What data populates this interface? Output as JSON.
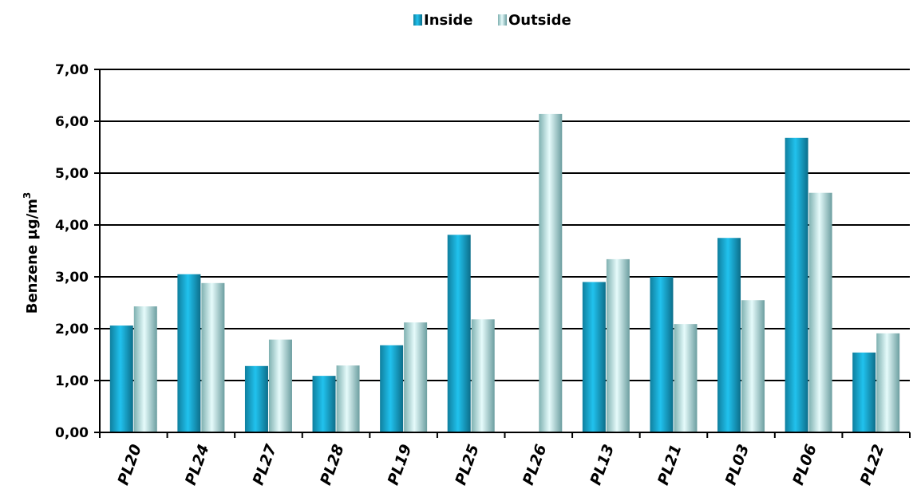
{
  "chart_data": {
    "type": "bar",
    "categories": [
      "PL20",
      "PL24",
      "PL27",
      "PL28",
      "PL19",
      "PL25",
      "PL26",
      "PL13",
      "PL21",
      "PL03",
      "PL06",
      "PL22"
    ],
    "series": [
      {
        "name": "Inside",
        "values": [
          2.06,
          3.05,
          1.28,
          1.09,
          1.68,
          3.81,
          null,
          2.9,
          3.0,
          3.75,
          5.68,
          1.54
        ],
        "color": "#19a7cc"
      },
      {
        "name": "Outside",
        "values": [
          2.43,
          2.88,
          1.79,
          1.29,
          2.12,
          2.18,
          6.14,
          3.34,
          2.09,
          2.55,
          4.62,
          1.91
        ],
        "color": "#bfe4e4"
      }
    ],
    "title": "",
    "xlabel": "",
    "ylabel": "Benzene µg/m",
    "ylabel_superscript": "3",
    "ylim": [
      0,
      7
    ],
    "yticks": [
      0,
      1,
      2,
      3,
      4,
      5,
      6,
      7
    ],
    "ytick_labels": [
      "0,00",
      "1,00",
      "2,00",
      "3,00",
      "4,00",
      "5,00",
      "6,00",
      "7,00"
    ],
    "grid": true,
    "legend_position": "top-center"
  }
}
